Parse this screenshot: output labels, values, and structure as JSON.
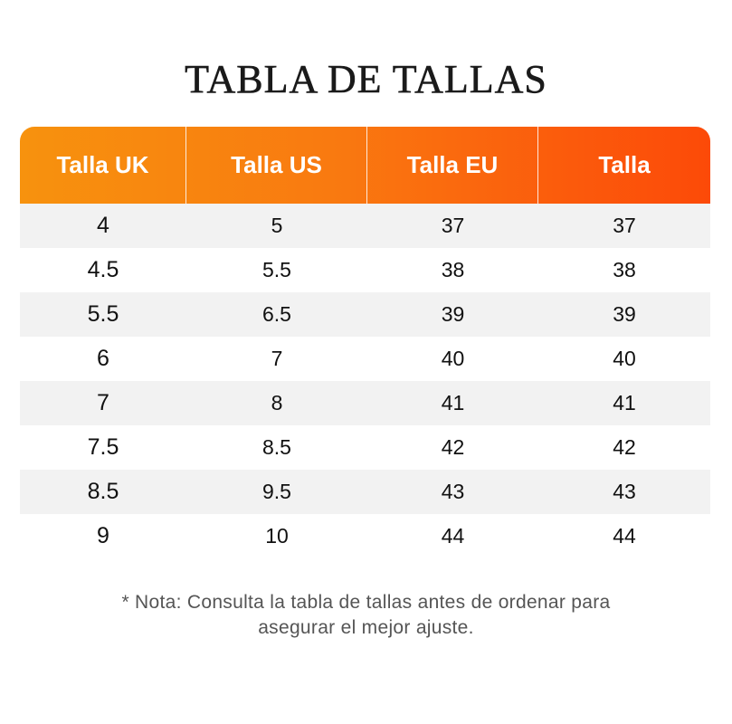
{
  "title": "TABLA DE TALLAS",
  "table": {
    "headers": [
      "Talla UK",
      "Talla US",
      "Talla EU",
      "Talla"
    ],
    "rows": [
      [
        "4",
        "5",
        "37",
        "37"
      ],
      [
        "4.5",
        "5.5",
        "38",
        "38"
      ],
      [
        "5.5",
        "6.5",
        "39",
        "39"
      ],
      [
        "6",
        "7",
        "40",
        "40"
      ],
      [
        "7",
        "8",
        "41",
        "41"
      ],
      [
        "7.5",
        "8.5",
        "42",
        "42"
      ],
      [
        "8.5",
        "9.5",
        "43",
        "43"
      ],
      [
        "9",
        "10",
        "44",
        "44"
      ]
    ]
  },
  "note": {
    "line1": "* Nota: Consulta la tabla de tallas antes de ordenar para",
    "line2": "asegurar el mejor ajuste."
  },
  "colors": {
    "header_gradient_start": "#f7920e",
    "header_gradient_end": "#fc4a08",
    "row_shade": "#f2f2f2"
  }
}
